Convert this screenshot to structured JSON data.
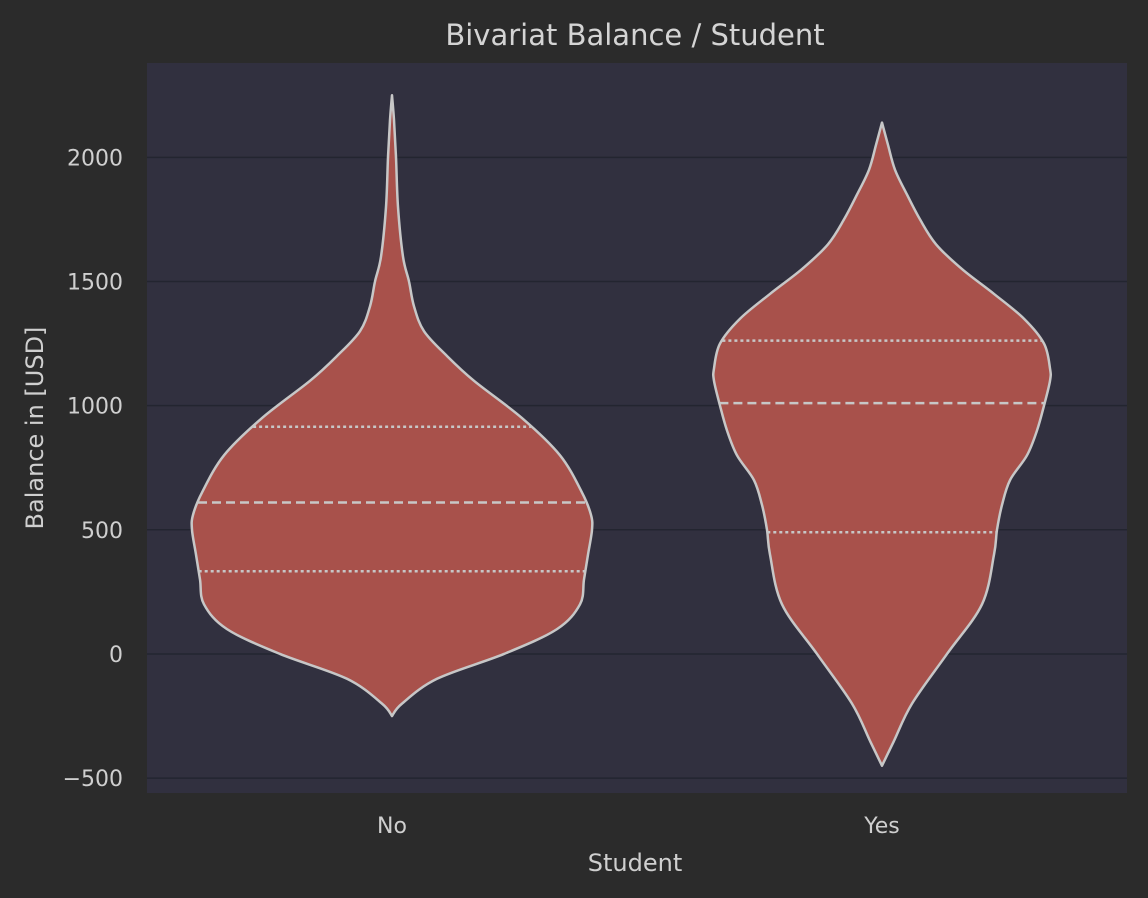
{
  "chart_data": {
    "type": "violin",
    "title": "Bivariat Balance / Student",
    "xlabel": "Student",
    "ylabel": "Balance in [USD]",
    "categories": [
      "No",
      "Yes"
    ],
    "ylim": [
      -560,
      2380
    ],
    "yticks": [
      -500,
      0,
      500,
      1000,
      1500,
      2000
    ],
    "ytick_labels": [
      "−500",
      "0",
      "500",
      "1000",
      "1500",
      "2000"
    ],
    "grid": true,
    "colors": {
      "background": "#2b2b2b",
      "plot_area": "#31303f",
      "violin_fill": "#a8514b",
      "outline": "#c7c7c7"
    },
    "violins": [
      {
        "category": "No",
        "min": -250,
        "max": 2250,
        "q1": 333,
        "median": 610,
        "q3": 915,
        "density_profile": [
          [
            -250,
            0
          ],
          [
            -200,
            10
          ],
          [
            -100,
            45
          ],
          [
            0,
            112
          ],
          [
            100,
            165
          ],
          [
            200,
            188
          ],
          [
            300,
            192
          ],
          [
            400,
            196
          ],
          [
            500,
            200
          ],
          [
            560,
            199
          ],
          [
            650,
            190
          ],
          [
            800,
            168
          ],
          [
            950,
            130
          ],
          [
            1100,
            82
          ],
          [
            1200,
            55
          ],
          [
            1300,
            32
          ],
          [
            1400,
            22
          ],
          [
            1500,
            17
          ],
          [
            1600,
            11
          ],
          [
            1800,
            6
          ],
          [
            2000,
            4
          ],
          [
            2150,
            2
          ],
          [
            2250,
            0
          ]
        ]
      },
      {
        "category": "Yes",
        "min": -450,
        "max": 2140,
        "q1": 490,
        "median": 1010,
        "q3": 1262,
        "density_profile": [
          [
            -450,
            0
          ],
          [
            -350,
            12
          ],
          [
            -200,
            30
          ],
          [
            0,
            65
          ],
          [
            200,
            100
          ],
          [
            400,
            112
          ],
          [
            500,
            115
          ],
          [
            600,
            120
          ],
          [
            700,
            128
          ],
          [
            800,
            145
          ],
          [
            900,
            155
          ],
          [
            1000,
            162
          ],
          [
            1100,
            168
          ],
          [
            1150,
            168
          ],
          [
            1250,
            162
          ],
          [
            1350,
            142
          ],
          [
            1450,
            112
          ],
          [
            1550,
            80
          ],
          [
            1650,
            54
          ],
          [
            1750,
            38
          ],
          [
            1850,
            25
          ],
          [
            1950,
            13
          ],
          [
            2050,
            6
          ],
          [
            2140,
            0
          ]
        ]
      }
    ]
  }
}
